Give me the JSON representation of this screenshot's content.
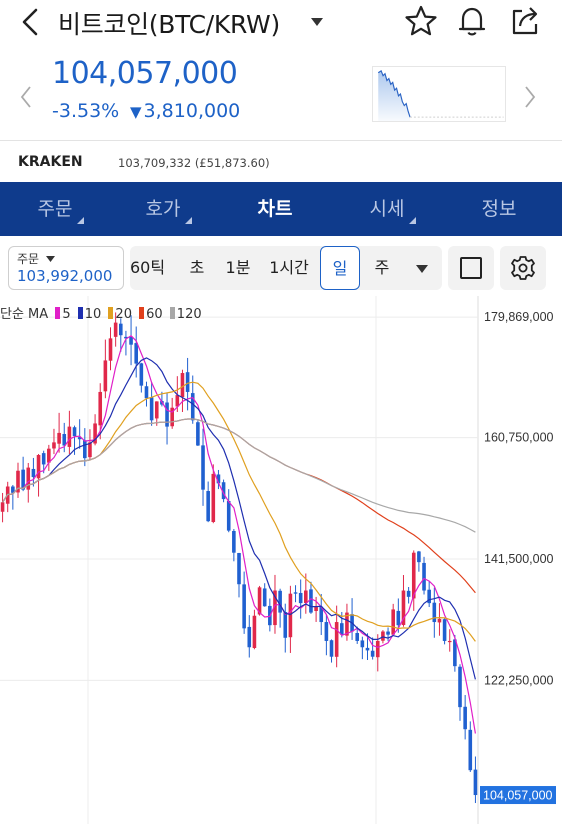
{
  "header": {
    "title": "비트코인(BTC/KRW)",
    "icons": [
      "back-icon",
      "caret-down-icon",
      "star-icon",
      "bell-icon",
      "share-icon"
    ]
  },
  "price": {
    "current": "104,057,000",
    "change_pct": "-3.53%",
    "change_amount": "3,810,000",
    "color": "#1e62c7"
  },
  "exchange": {
    "name": "KRAKEN",
    "price": "103,709,332 (£51,873.60)"
  },
  "nav": {
    "tabs": [
      {
        "label": "주문"
      },
      {
        "label": "호가"
      },
      {
        "label": "차트"
      },
      {
        "label": "시세"
      },
      {
        "label": "정보"
      }
    ],
    "active": "차트",
    "bg_color": "#0f3b8c"
  },
  "toolbar": {
    "order_label": "주문",
    "order_value": "103,992,000",
    "periods": [
      "60틱",
      "초",
      "1분",
      "1시간",
      "일",
      "주"
    ],
    "selected_period": "일"
  },
  "legend": {
    "label": "단순 MA",
    "items": [
      {
        "name": "5",
        "color": "#e020c8"
      },
      {
        "name": "10",
        "color": "#1f2fb0"
      },
      {
        "name": "20",
        "color": "#e0a020"
      },
      {
        "name": "60",
        "color": "#e0401c"
      },
      {
        "name": "120",
        "color": "#a8a8a8"
      }
    ]
  },
  "chart_data": {
    "type": "candlestick",
    "y_ticks": [
      "179,869,000",
      "160,750,000",
      "141,500,000",
      "122,250,000"
    ],
    "last_price_label": "104,057,000",
    "ylim": [
      102000000,
      181000000
    ],
    "up_color": "#e0284a",
    "down_color": "#2060d0",
    "grid": true,
    "closes": [
      150500000,
      153000000,
      152000000,
      155500000,
      152500000,
      156000000,
      154500000,
      158000000,
      156500000,
      159000000,
      160000000,
      161500000,
      159500000,
      162500000,
      161000000,
      160500000,
      157500000,
      160000000,
      163000000,
      168000000,
      173000000,
      176500000,
      179000000,
      177000000,
      176500000,
      175500000,
      172500000,
      169000000,
      167000000,
      163500000,
      166500000,
      166000000,
      162500000,
      165500000,
      167500000,
      171000000,
      168000000,
      163500000,
      159500000,
      152500000,
      147500000,
      155000000,
      153500000,
      151000000,
      146000000,
      142500000,
      137500000,
      130500000,
      127500000,
      132500000,
      137000000,
      134000000,
      131000000,
      136500000,
      133000000,
      129000000,
      136000000,
      136000000,
      134500000,
      136500000,
      133000000,
      134000000,
      131500000,
      128500000,
      126000000,
      131500000,
      129500000,
      133000000,
      130000000,
      128500000,
      127500000,
      127000000,
      126000000,
      128500000,
      130000000,
      129500000,
      133500000,
      131000000,
      136500000,
      135500000,
      142500000,
      141000000,
      136500000,
      134500000,
      131500000,
      132000000,
      128500000,
      128500000,
      124500000,
      118000000,
      114500000,
      108000000,
      104057000
    ],
    "ma": [
      {
        "period": 5,
        "color": "#e020c8"
      },
      {
        "period": 10,
        "color": "#1f2fb0"
      },
      {
        "period": 20,
        "color": "#e0a020"
      },
      {
        "period": 60,
        "color": "#e0401c"
      },
      {
        "period": 120,
        "color": "#a8a8a8"
      }
    ]
  }
}
